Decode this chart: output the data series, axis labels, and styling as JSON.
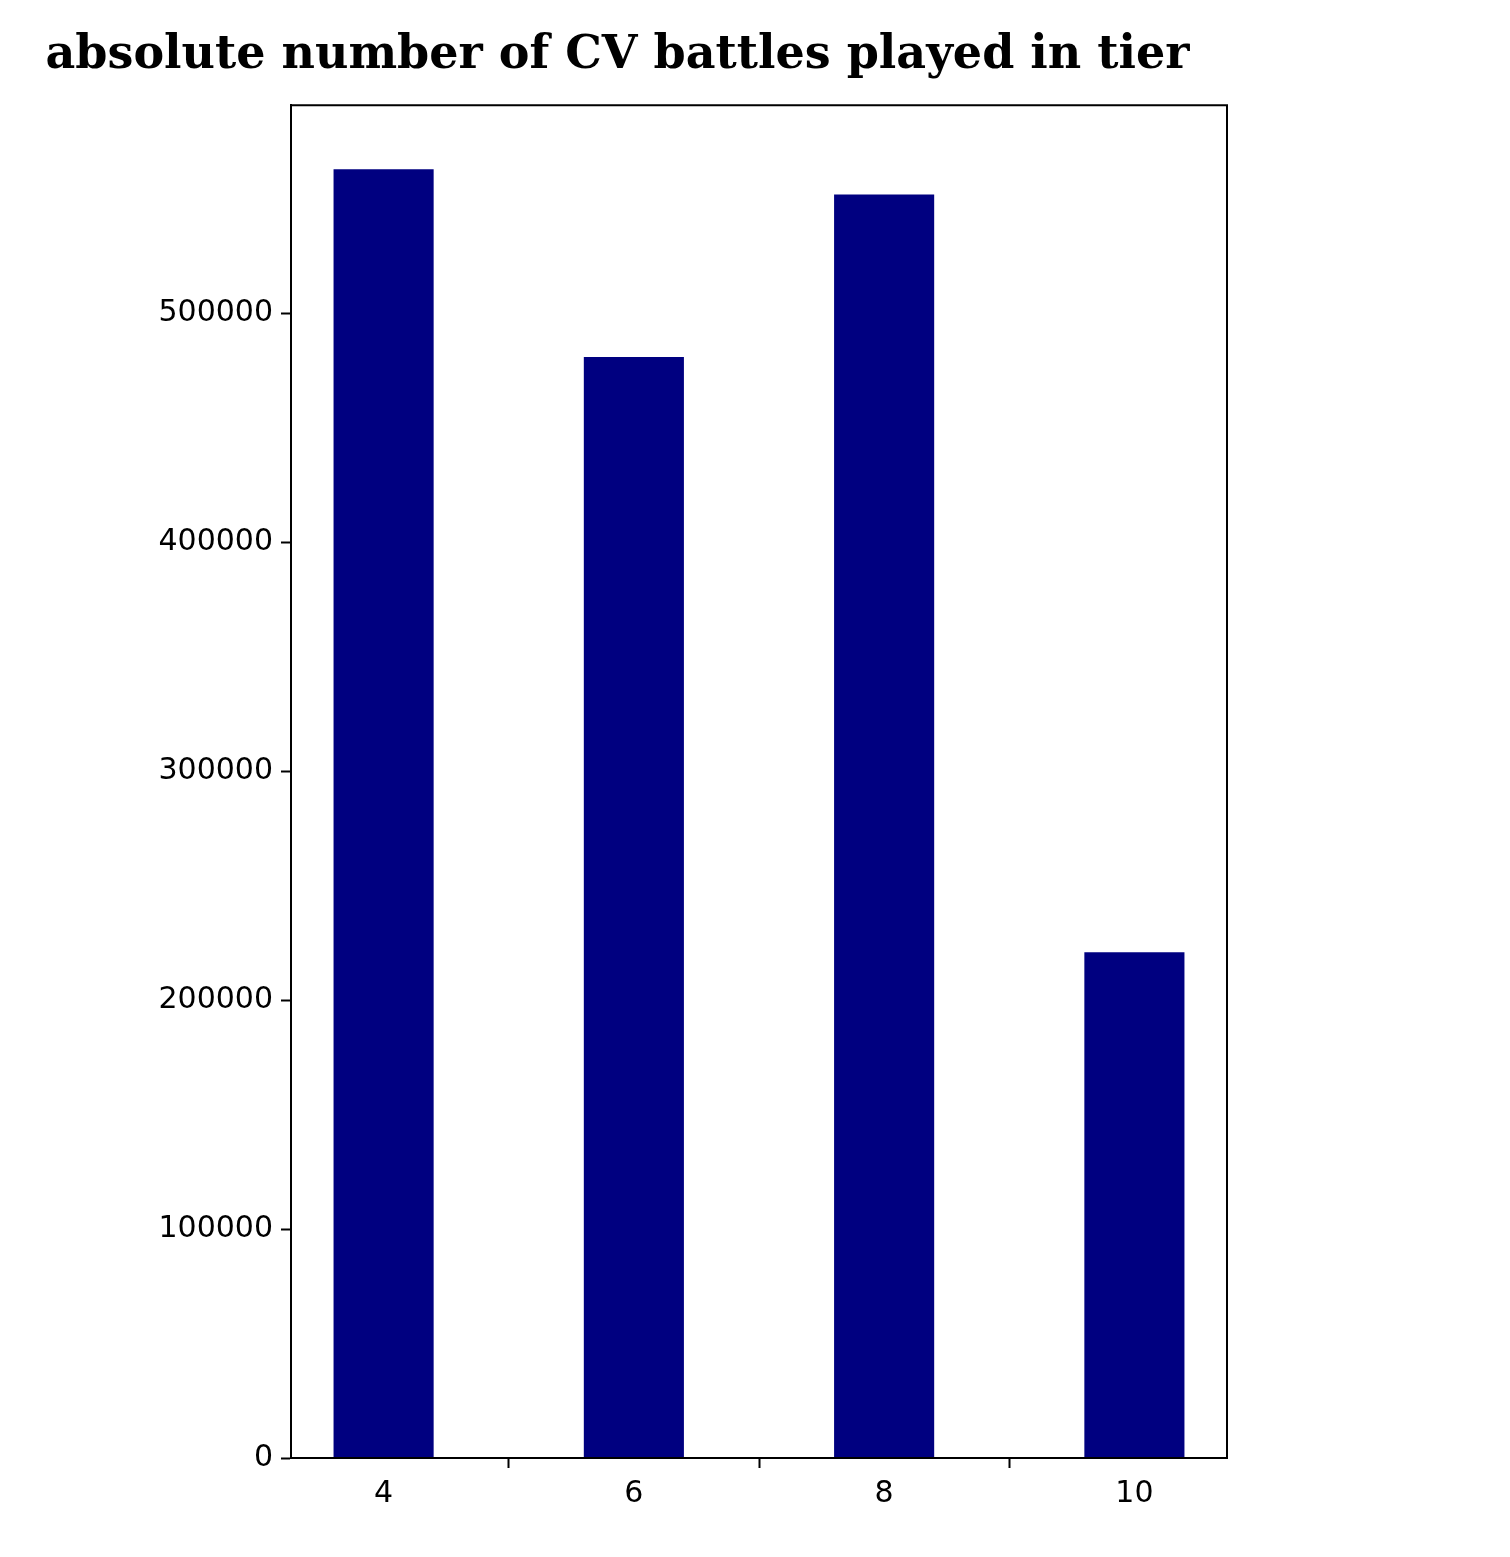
{
  "chart_data": {
    "type": "bar",
    "title": "absolute number of CV battles played in tier",
    "x": [
      4,
      6,
      8,
      10
    ],
    "values": [
      563000,
      481000,
      552000,
      221000
    ],
    "color": "#000080",
    "xlim": [
      3.26,
      10.74
    ],
    "xticks": [
      4,
      6,
      8,
      10
    ],
    "ylim": [
      0,
      591000
    ],
    "yticks": [
      0,
      100000,
      200000,
      300000,
      400000,
      500000
    ]
  }
}
